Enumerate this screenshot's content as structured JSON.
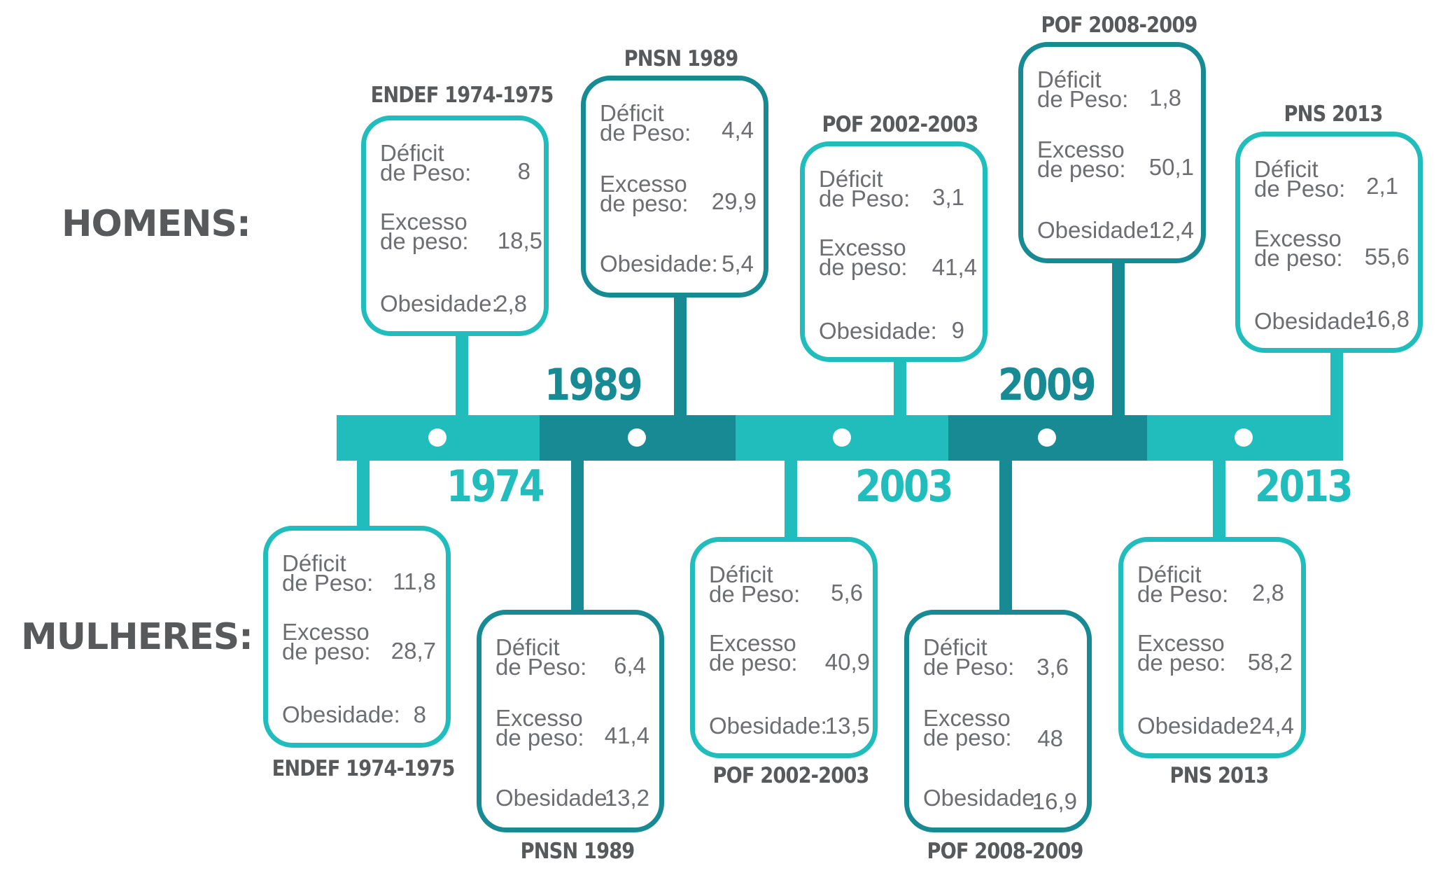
{
  "labels": {
    "men": "HOMENS:",
    "women": "MULHERES:"
  },
  "row_labels": {
    "deficit": [
      "Déficit",
      "de Peso:"
    ],
    "excess": [
      "Excesso",
      "de peso:"
    ],
    "obesity": "Obesidade:"
  },
  "colors": {
    "light": "#21bdbd",
    "dark": "#178a93",
    "text": "#6d6e71",
    "heading": "#58595b"
  },
  "years": [
    "1974",
    "1989",
    "2003",
    "2009",
    "2013"
  ],
  "surveys": [
    {
      "year": "1974",
      "name": "ENDEF 1974-1975",
      "men": {
        "deficit": "8",
        "excess": "18,5",
        "obesity": "2,8"
      },
      "women": {
        "deficit": "11,8",
        "excess": "28,7",
        "obesity": "8"
      }
    },
    {
      "year": "1989",
      "name": "PNSN 1989",
      "men": {
        "deficit": "4,4",
        "excess": "29,9",
        "obesity": "5,4"
      },
      "women": {
        "deficit": "6,4",
        "excess": "41,4",
        "obesity": "13,2"
      }
    },
    {
      "year": "2003",
      "name": "POF 2002-2003",
      "men": {
        "deficit": "3,1",
        "excess": "41,4",
        "obesity": "9"
      },
      "women": {
        "deficit": "5,6",
        "excess": "40,9",
        "obesity": "13,5"
      }
    },
    {
      "year": "2009",
      "name": "POF 2008-2009",
      "men": {
        "deficit": "1,8",
        "excess": "50,1",
        "obesity": "12,4"
      },
      "women": {
        "deficit": "3,6",
        "excess": "48",
        "obesity": "16,9"
      }
    },
    {
      "year": "2013",
      "name": "PNS 2013",
      "men": {
        "deficit": "2,1",
        "excess": "55,6",
        "obesity": "16,8"
      },
      "women": {
        "deficit": "2,8",
        "excess": "58,2",
        "obesity": "24,4"
      }
    }
  ]
}
